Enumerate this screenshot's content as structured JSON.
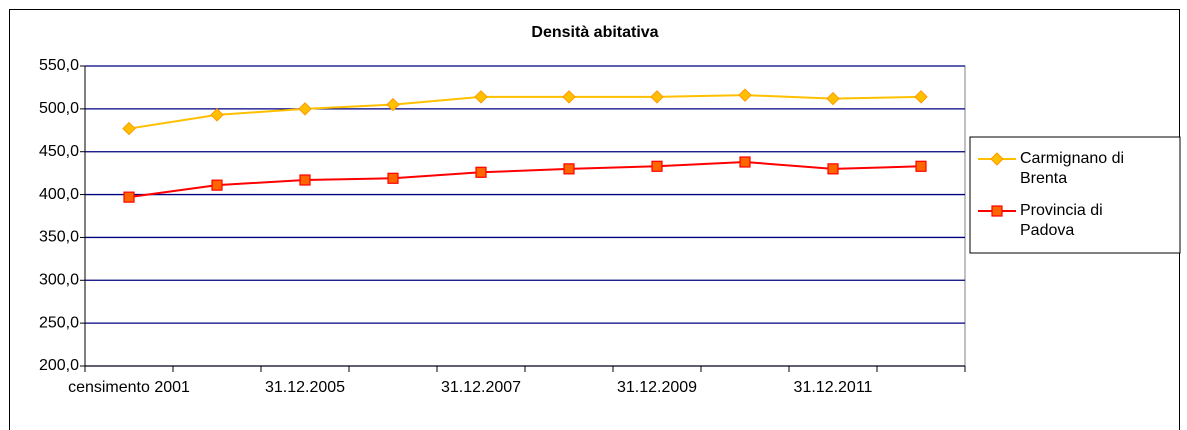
{
  "chart_data": {
    "type": "line",
    "title": "Densità abitativa",
    "categories": [
      "censimento 2001",
      null,
      "31.12.2005",
      null,
      "31.12.2007",
      null,
      "31.12.2009",
      null,
      "31.12.2011",
      null
    ],
    "series": [
      {
        "name": "Carmignano di Brenta",
        "color": "#ffc000",
        "marker": "diamond",
        "values": [
          477,
          493,
          500,
          505,
          514,
          514,
          514,
          516,
          512,
          514
        ]
      },
      {
        "name": "Provincia di Padova",
        "color": "#ff0000",
        "marker": "square",
        "values": [
          397,
          411,
          417,
          419,
          426,
          430,
          433,
          438,
          430,
          433
        ]
      }
    ],
    "ylim": [
      200,
      550
    ],
    "yticks": [
      {
        "value": 200,
        "label": "200,0"
      },
      {
        "value": 250,
        "label": "250,0"
      },
      {
        "value": 300,
        "label": "300,0"
      },
      {
        "value": 350,
        "label": "350,0"
      },
      {
        "value": 400,
        "label": "400,0"
      },
      {
        "value": 450,
        "label": "450,0"
      },
      {
        "value": 500,
        "label": "500,0"
      },
      {
        "value": 550,
        "label": "550,0"
      }
    ],
    "grid": true,
    "legend": "right"
  }
}
